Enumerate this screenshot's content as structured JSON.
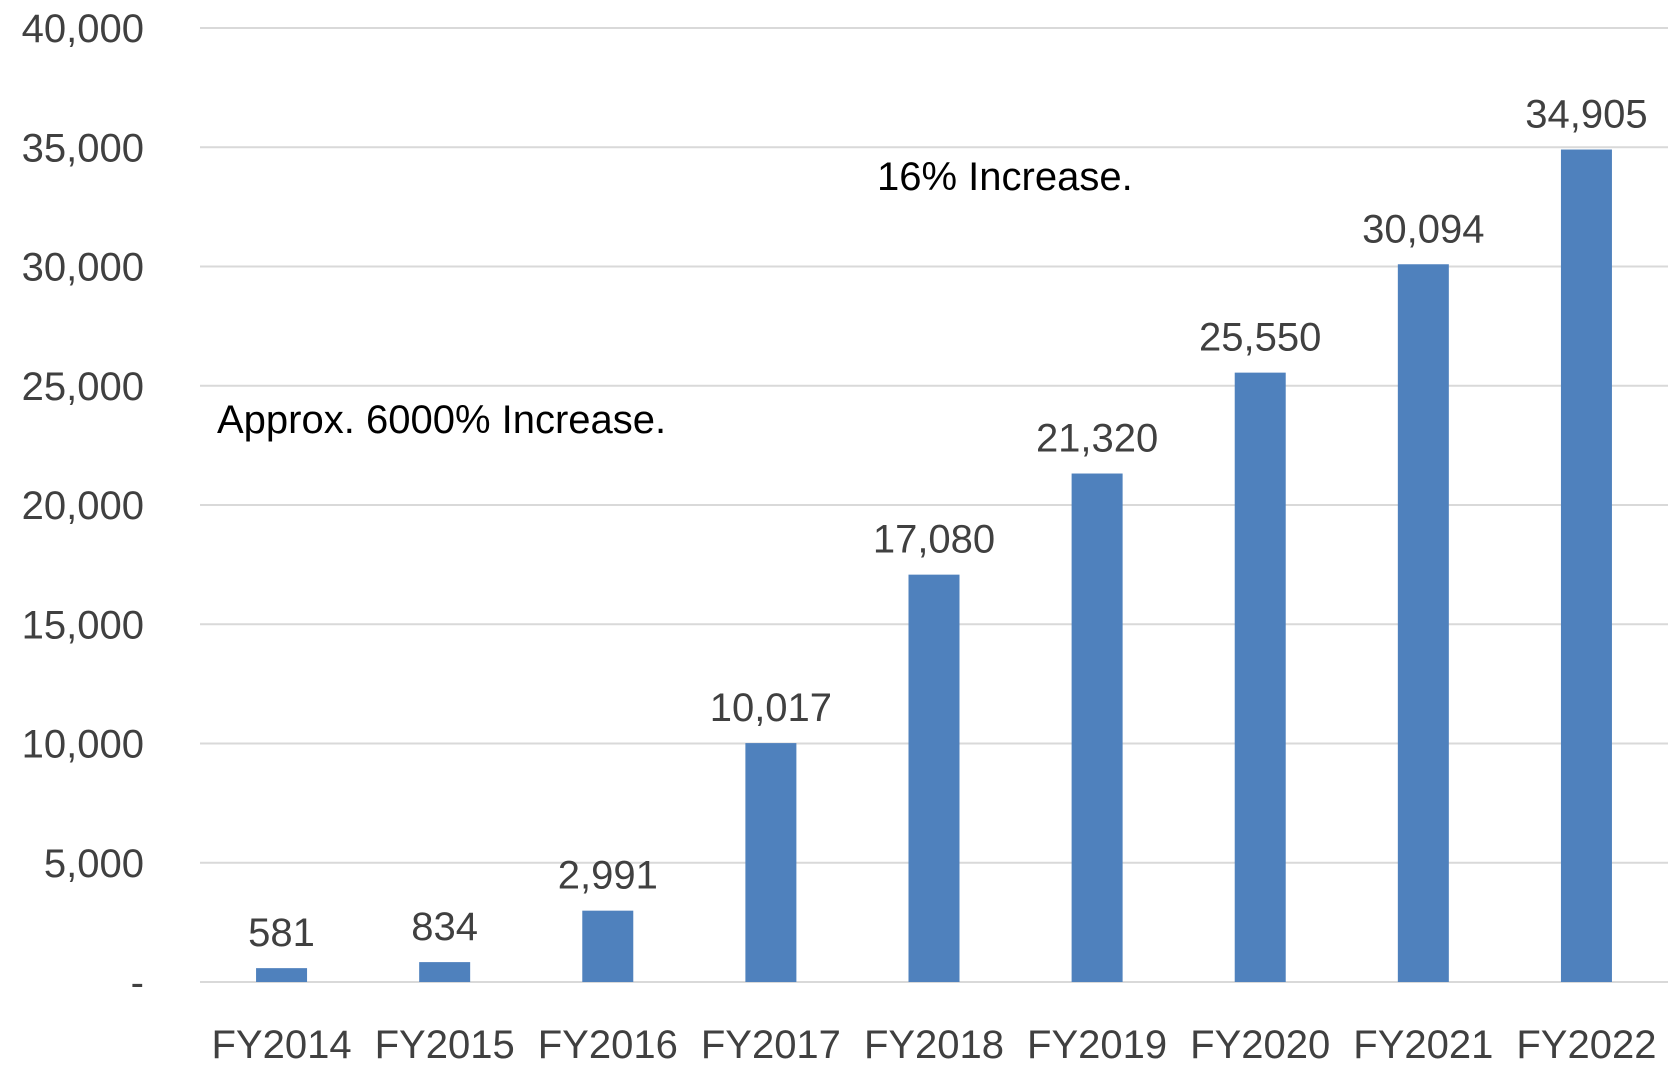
{
  "chart_data": {
    "type": "bar",
    "title": "",
    "xlabel": "",
    "ylabel": "",
    "categories": [
      "FY2014",
      "FY2015",
      "FY2016",
      "FY2017",
      "FY2018",
      "FY2019",
      "FY2020",
      "FY2021",
      "FY2022"
    ],
    "values": [
      581,
      834,
      2991,
      10017,
      17080,
      21320,
      25550,
      30094,
      34905
    ],
    "value_labels": [
      "581",
      "834",
      "2,991",
      "10,017",
      "17,080",
      "21,320",
      "25,550",
      "30,094",
      "34,905"
    ],
    "ylim": [
      0,
      40000
    ],
    "yticks": [
      0,
      5000,
      10000,
      15000,
      20000,
      25000,
      30000,
      35000,
      40000
    ],
    "ytick_labels": [
      "-",
      "5,000",
      "10,000",
      "15,000",
      "20,000",
      "25,000",
      "30,000",
      "35,000",
      "40,000"
    ],
    "grid": true,
    "legend": "none",
    "annotations": [
      "Approx. 6000% Increase.",
      "16% Increase."
    ],
    "colors": {
      "bar": "#4f81bd",
      "grid": "#d9d9d9",
      "text": "#404040",
      "annotation": "#000000"
    }
  }
}
